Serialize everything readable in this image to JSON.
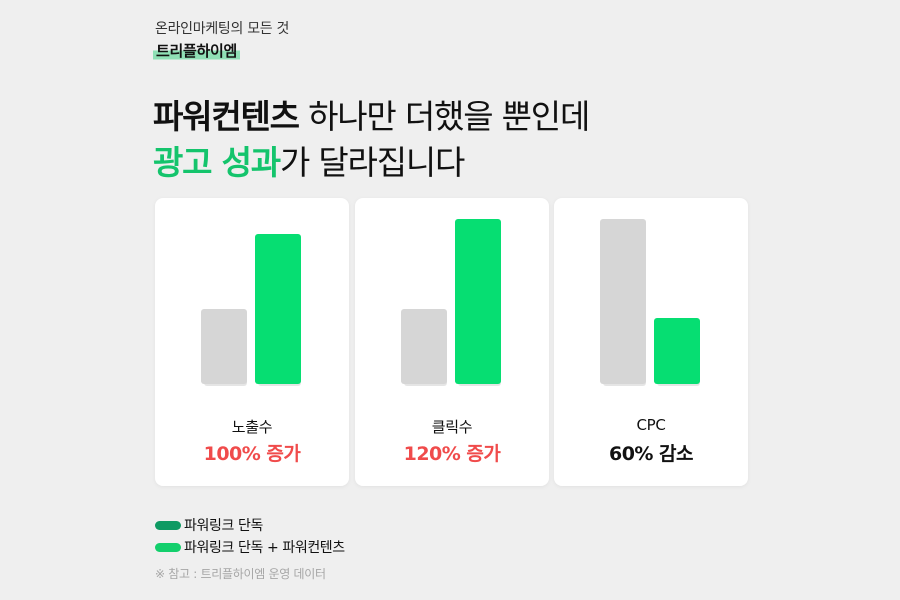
{
  "brand": {
    "subtitle": "온라인마케팅의 모든 것",
    "name": "트리플하이엠"
  },
  "headline": {
    "line1_bold": "파워컨텐츠",
    "line1_rest": " 하나만 더했을 뿐인데",
    "line2_green": "광고 성과",
    "line2_rest": "가 달라집니다"
  },
  "colors": {
    "gray_bar": "#d6d6d6",
    "green_bar": "#06de72",
    "increase": "#f04b4b",
    "decrease": "#111111",
    "legend_dark": "#0e9a63",
    "legend_green": "#13cf6c"
  },
  "chart_data": [
    {
      "type": "bar",
      "metric": "노출수",
      "change_label": "100% 증가",
      "change_direction": "up",
      "series": [
        {
          "name": "파워링크 단독",
          "value": 1
        },
        {
          "name": "파워링크 단독 + 파워컨텐츠",
          "value": 2
        }
      ],
      "ylim": [
        0,
        2.2
      ]
    },
    {
      "type": "bar",
      "metric": "클릭수",
      "change_label": "120% 증가",
      "change_direction": "up",
      "series": [
        {
          "name": "파워링크 단독",
          "value": 1
        },
        {
          "name": "파워링크 단독 + 파워컨텐츠",
          "value": 2.2
        }
      ],
      "ylim": [
        0,
        2.2
      ]
    },
    {
      "type": "bar",
      "metric": "CPC",
      "change_label": "60% 감소",
      "change_direction": "down",
      "series": [
        {
          "name": "파워링크 단독",
          "value": 1
        },
        {
          "name": "파워링크 단독 + 파워컨텐츠",
          "value": 0.4
        }
      ],
      "ylim": [
        0,
        1
      ]
    }
  ],
  "legend": [
    {
      "label": "파워링크 단독",
      "color": "#0e9a63"
    },
    {
      "label": "파워링크 단독 + 파워컨텐츠",
      "color": "#13cf6c"
    }
  ],
  "note": "※ 참고 : 트리플하이엠 운영 데이터"
}
